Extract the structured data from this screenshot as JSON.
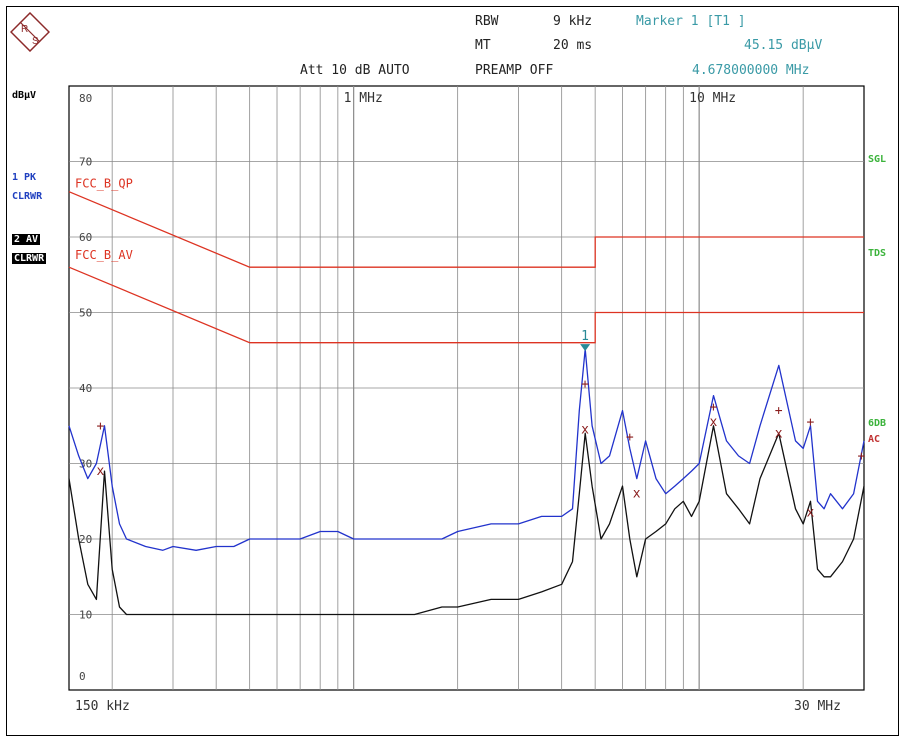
{
  "header": {
    "rbw_label": "RBW",
    "rbw_value": "9 kHz",
    "mt_label": "MT",
    "mt_value": "20 ms",
    "att": "Att 10 dB AUTO",
    "preamp": "PREAMP OFF",
    "marker_title": "Marker 1 [T1 ]",
    "marker_level": "45.15 dBµV",
    "marker_freq": "4.678000000 MHz"
  },
  "logo": {
    "text": "R S"
  },
  "left_labels": {
    "unit": "dBµV",
    "trace1": [
      "1 PK",
      "CLRWR"
    ],
    "trace2": [
      "2 AV",
      "CLRWR"
    ]
  },
  "right_labels": {
    "sgl": "SGL",
    "tds": "TDS",
    "sixdb": "6DB",
    "ac": "AC"
  },
  "colors": {
    "pk_trace": "#2233cc",
    "av_trace": "#111111",
    "limit": "#dd3322",
    "marker": "#2a8a96",
    "grid": "#8a8a8a",
    "green": "#3bb33b"
  },
  "chart_data": {
    "type": "line",
    "x_scale": "log",
    "xlim": [
      0.15,
      30
    ],
    "xlabel_left": "150 kHz",
    "xlabel_right": "30 MHz",
    "x_tick_labels": [
      {
        "x": 1,
        "label": "1 MHz"
      },
      {
        "x": 10,
        "label": "10 MHz"
      }
    ],
    "ylim": [
      0,
      80
    ],
    "y_ticks": [
      0,
      10,
      20,
      30,
      40,
      50,
      60,
      70,
      80
    ],
    "grid": true,
    "limit_lines": [
      {
        "name": "FCC_B_QP",
        "points": [
          [
            0.15,
            66
          ],
          [
            0.5,
            56
          ],
          [
            5,
            56
          ],
          [
            5,
            60
          ],
          [
            30,
            60
          ]
        ]
      },
      {
        "name": "FCC_B_AV",
        "points": [
          [
            0.15,
            56
          ],
          [
            0.5,
            46
          ],
          [
            5,
            46
          ],
          [
            5,
            50
          ],
          [
            30,
            50
          ]
        ]
      }
    ],
    "series": [
      {
        "name": "1 PK CLRWR",
        "kind": "peak",
        "x": [
          0.15,
          0.16,
          0.17,
          0.18,
          0.19,
          0.2,
          0.21,
          0.22,
          0.25,
          0.28,
          0.3,
          0.35,
          0.4,
          0.45,
          0.5,
          0.6,
          0.7,
          0.8,
          0.9,
          1.0,
          1.2,
          1.5,
          1.8,
          2.0,
          2.5,
          3.0,
          3.5,
          4.0,
          4.3,
          4.5,
          4.678,
          4.9,
          5.2,
          5.5,
          6.0,
          6.3,
          6.6,
          7.0,
          7.5,
          8.0,
          8.5,
          9.0,
          9.5,
          10,
          11,
          12,
          13,
          14,
          15,
          17,
          19,
          20,
          21,
          22,
          23,
          24,
          26,
          28,
          30
        ],
        "y": [
          35,
          31,
          28,
          30,
          35,
          27,
          22,
          20,
          19,
          18.5,
          19,
          18.5,
          19,
          19,
          20,
          20,
          20,
          21,
          21,
          20,
          20,
          20,
          20,
          21,
          22,
          22,
          23,
          23,
          24,
          37,
          45.15,
          35,
          30,
          31,
          37,
          32,
          28,
          33,
          28,
          26,
          27,
          28,
          29,
          30,
          39,
          33,
          31,
          30,
          35,
          43,
          33,
          32,
          35,
          25,
          24,
          26,
          24,
          26,
          33
        ]
      },
      {
        "name": "2 AV CLRWR",
        "kind": "average",
        "x": [
          0.15,
          0.16,
          0.17,
          0.18,
          0.19,
          0.2,
          0.21,
          0.22,
          0.25,
          0.28,
          0.3,
          0.35,
          0.4,
          0.45,
          0.5,
          0.6,
          0.7,
          0.8,
          0.9,
          1.0,
          1.2,
          1.5,
          1.8,
          2.0,
          2.5,
          3.0,
          3.5,
          4.0,
          4.3,
          4.5,
          4.678,
          4.9,
          5.2,
          5.5,
          6.0,
          6.3,
          6.6,
          7.0,
          7.5,
          8.0,
          8.5,
          9.0,
          9.5,
          10,
          11,
          12,
          13,
          14,
          15,
          17,
          19,
          20,
          21,
          22,
          23,
          24,
          26,
          28,
          30
        ],
        "y": [
          28,
          20,
          14,
          12,
          29,
          16,
          11,
          10,
          10,
          10,
          10,
          10,
          10,
          10,
          10,
          10,
          10,
          10,
          10,
          10,
          10,
          10,
          11,
          11,
          12,
          12,
          13,
          14,
          17,
          26,
          34,
          27,
          20,
          22,
          27,
          20,
          15,
          20,
          21,
          22,
          24,
          25,
          23,
          25,
          35,
          26,
          24,
          22,
          28,
          34,
          24,
          22,
          25,
          16,
          15,
          15,
          17,
          20,
          27
        ]
      }
    ],
    "trace_markers": [
      {
        "x": 0.185,
        "y": 35,
        "sym": "+"
      },
      {
        "x": 0.185,
        "y": 29,
        "sym": "x"
      },
      {
        "x": 4.678,
        "y": 40.5,
        "sym": "+"
      },
      {
        "x": 4.678,
        "y": 34.5,
        "sym": "x"
      },
      {
        "x": 6.3,
        "y": 33.5,
        "sym": "+"
      },
      {
        "x": 6.6,
        "y": 26,
        "sym": "x"
      },
      {
        "x": 11,
        "y": 37.5,
        "sym": "+"
      },
      {
        "x": 11,
        "y": 35.5,
        "sym": "x"
      },
      {
        "x": 17,
        "y": 37,
        "sym": "+"
      },
      {
        "x": 17,
        "y": 34,
        "sym": "x"
      },
      {
        "x": 21,
        "y": 35.5,
        "sym": "+"
      },
      {
        "x": 21,
        "y": 23.5,
        "sym": "x"
      },
      {
        "x": 29.5,
        "y": 31,
        "sym": "+"
      }
    ],
    "marker": {
      "id": "1",
      "x": 4.678,
      "y": 45.15
    }
  }
}
